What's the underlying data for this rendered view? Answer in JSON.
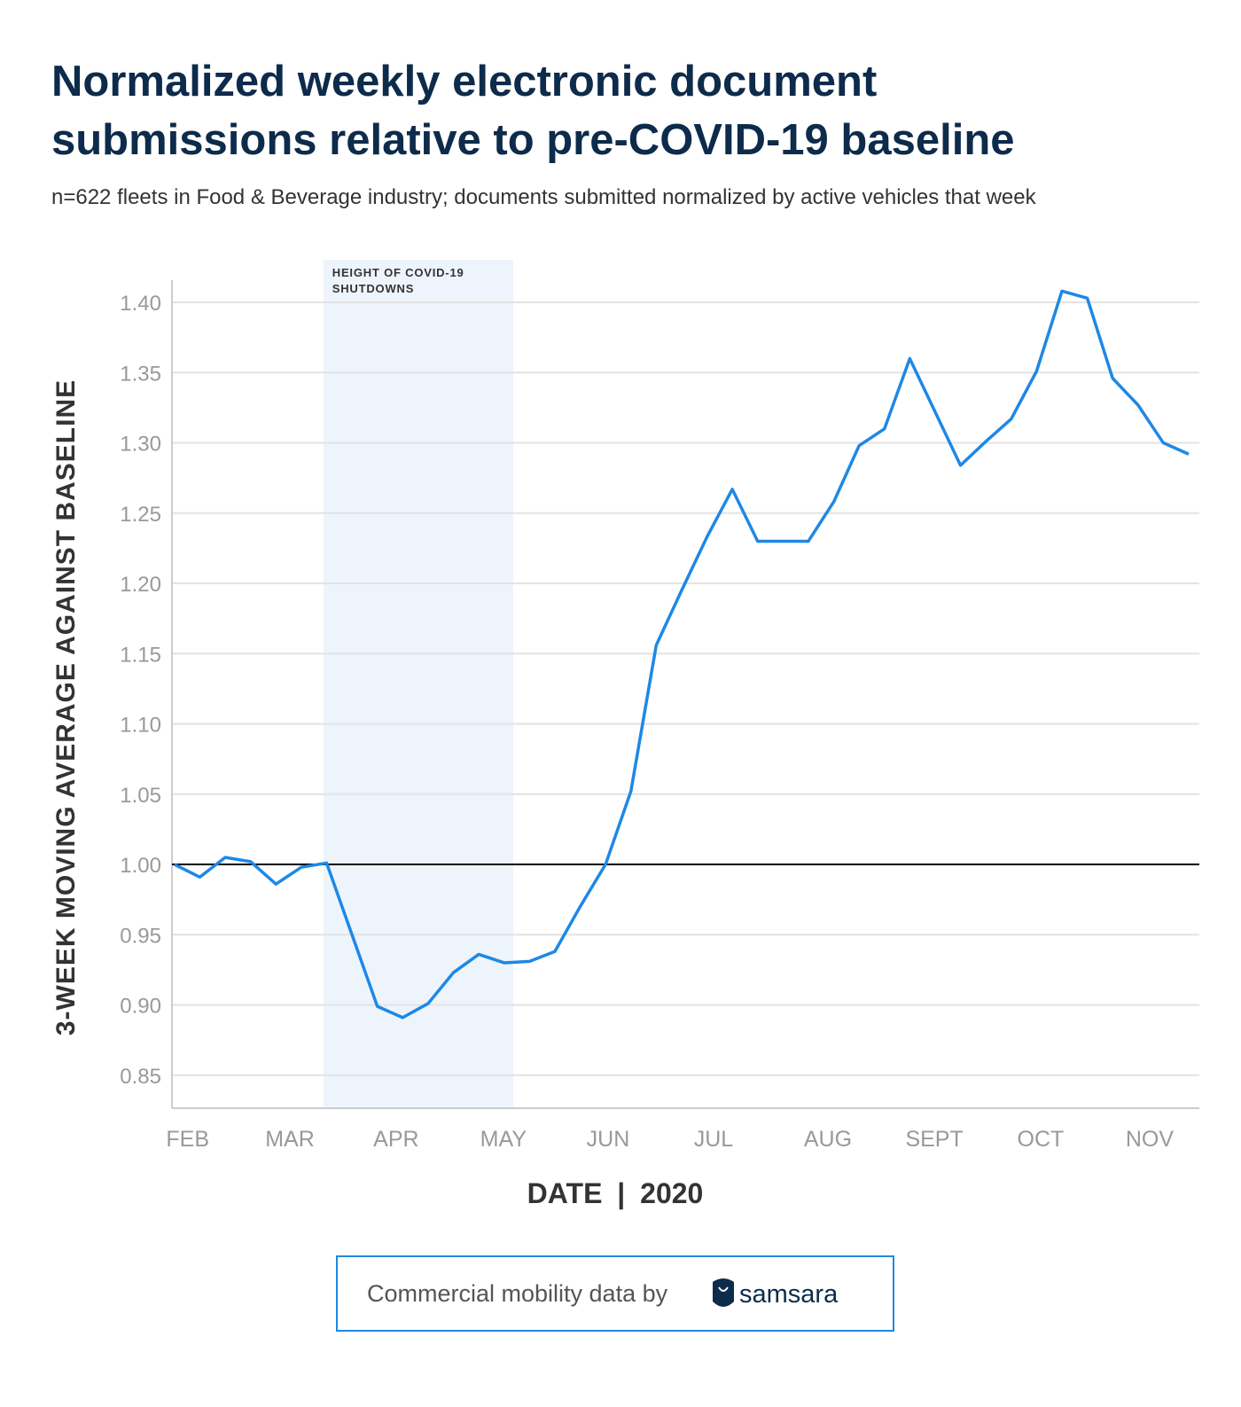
{
  "chart_data": {
    "type": "line",
    "title_lines": [
      "Normalized weekly electronic document",
      "submissions relative to pre-COVID-19 baseline"
    ],
    "subtitle": "n=622 fleets in Food & Beverage industry; documents submitted normalized by active vehicles that week",
    "y_label": "3-WEEK MOVING AVERAGE AGAINST BASELINE",
    "x_label": "DATE | 2020",
    "x": [
      0,
      1,
      2,
      3,
      4,
      5,
      6,
      7,
      8,
      9,
      10,
      11,
      12,
      13,
      14,
      15,
      16,
      17,
      18,
      19,
      20,
      21,
      22,
      23,
      24,
      25,
      26,
      27,
      28,
      29,
      30,
      31,
      32,
      33,
      34,
      35,
      36,
      37,
      38,
      39,
      40
    ],
    "series": [
      {
        "name": "Documents",
        "color": "#1e88e5",
        "values": [
          1.0,
          0.991,
          1.005,
          1.002,
          0.986,
          0.998,
          1.001,
          0.95,
          0.899,
          0.891,
          0.901,
          0.923,
          0.936,
          0.93,
          0.931,
          0.938,
          0.97,
          1.0,
          1.052,
          1.156,
          1.195,
          1.233,
          1.267,
          1.23,
          1.23,
          1.23,
          1.258,
          1.298,
          1.31,
          1.36,
          1.322,
          1.284,
          1.301,
          1.317,
          1.351,
          1.408,
          1.403,
          1.346,
          1.327,
          1.3,
          1.292
        ]
      }
    ],
    "xlim": [
      -0.1,
      40.42
    ],
    "xticks": [
      {
        "value": 0.52,
        "label": "FEB"
      },
      {
        "value": 4.55,
        "label": "MAR"
      },
      {
        "value": 8.74,
        "label": "APR"
      },
      {
        "value": 12.97,
        "label": "MAY"
      },
      {
        "value": 17.1,
        "label": "JUN"
      },
      {
        "value": 21.26,
        "label": "JUL"
      },
      {
        "value": 25.77,
        "label": "AUG"
      },
      {
        "value": 29.97,
        "label": "SEPT"
      },
      {
        "value": 34.16,
        "label": "OCT"
      },
      {
        "value": 38.46,
        "label": "NOV"
      }
    ],
    "ylim": [
      0.8265,
      1.4158
    ],
    "yticks": [
      0.85,
      {
        "value": 0.9,
        "label": "0.90"
      },
      0.95,
      {
        "value": 1.0,
        "label": "1.00"
      },
      1.05,
      {
        "value": 1.1,
        "label": "1.10"
      },
      1.15,
      {
        "value": 1.2,
        "label": "1.20"
      },
      1.25,
      {
        "value": 1.3,
        "label": "1.30"
      },
      1.35,
      {
        "value": 1.4,
        "label": "1.40"
      }
    ],
    "grid": true,
    "reference_line": {
      "value": 1.0,
      "color": "#000000"
    },
    "shaded_span": {
      "x": [
        5.87,
        13.36
      ],
      "color": "#eef4fc",
      "label_lines": [
        "HEIGHT OF COVID-19",
        "SHUTDOWNS"
      ]
    },
    "footer": {
      "text": "Commercial mobility data by",
      "brand": "samsara"
    }
  }
}
